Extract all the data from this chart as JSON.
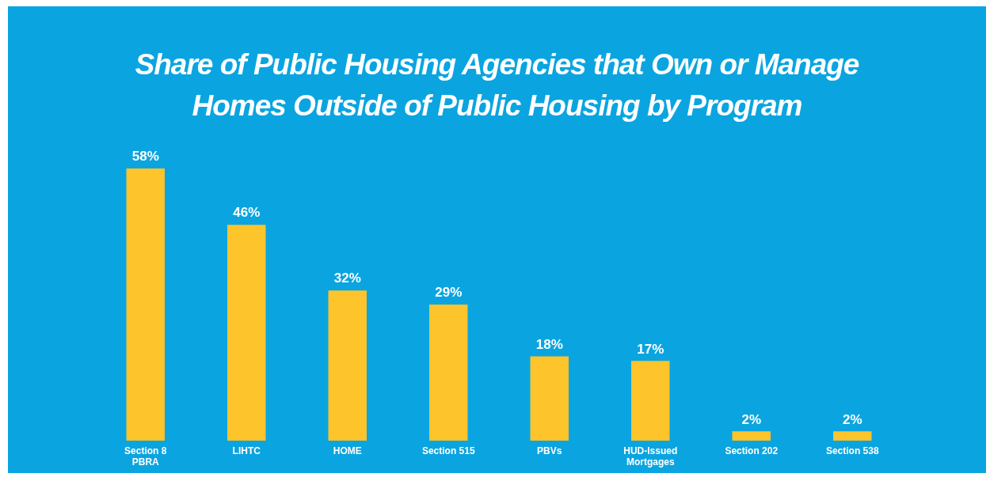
{
  "chart_data": {
    "type": "bar",
    "title": "Share of Public Housing Agencies that Own or Manage Homes Outside of Public Housing by Program",
    "categories": [
      "Section 8\nPBRA",
      "LIHTC",
      "HOME",
      "Section 515",
      "PBVs",
      "HUD-Issued\nMortgages",
      "Section 202",
      "Section 538"
    ],
    "values": [
      58,
      46,
      32,
      29,
      18,
      17,
      2,
      2
    ],
    "value_labels": [
      "58%",
      "46%",
      "32%",
      "29%",
      "18%",
      "17%",
      "2%",
      "2%"
    ],
    "color": "#fdc42b",
    "grid": false,
    "legend": false,
    "tick_labels": "x"
  }
}
